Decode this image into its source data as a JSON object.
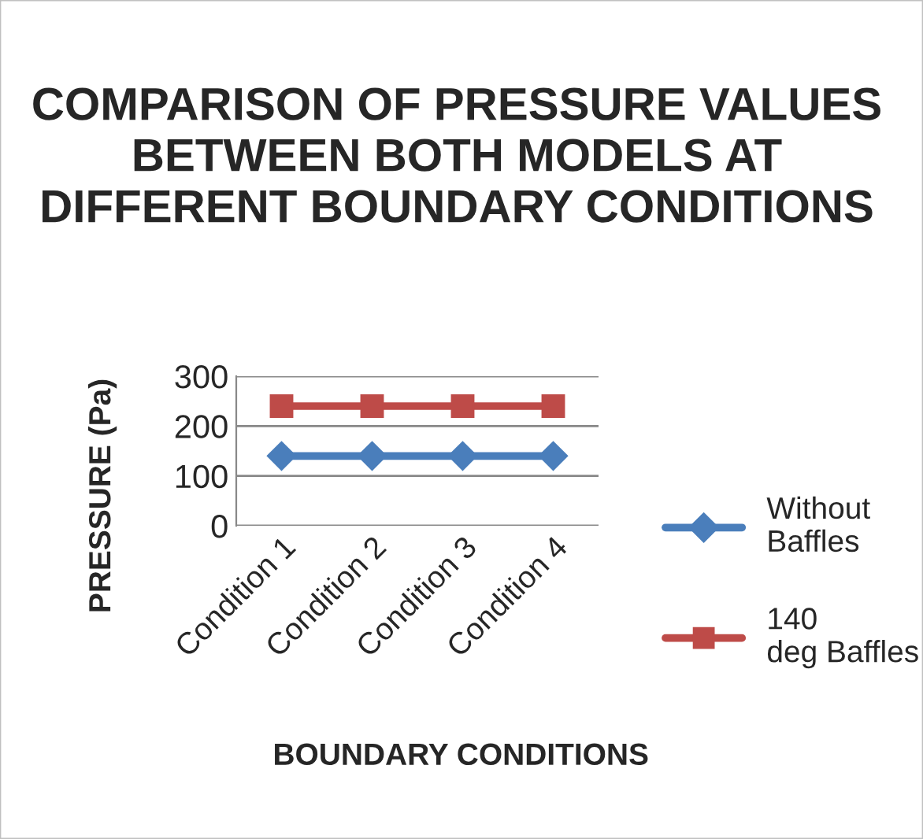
{
  "chart_data": {
    "type": "line",
    "title": "COMPARISON OF PRESSURE VALUES BETWEEN BOTH MODELS AT DIFFERENT BOUNDARY CONDITIONS",
    "xlabel": "BOUNDARY CONDITIONS",
    "ylabel": "PRESSURE (Pa)",
    "categories": [
      "Condition 1",
      "Condition 2",
      "Condition 3",
      "Condition 4"
    ],
    "series": [
      {
        "name": "Without Baffles",
        "color": "#4a7ebb",
        "marker": "diamond",
        "values": [
          140,
          140,
          140,
          140
        ]
      },
      {
        "name": "140 deg Baffles",
        "color": "#be4b48",
        "marker": "square",
        "values": [
          240,
          240,
          240,
          240
        ]
      }
    ],
    "ylim": [
      0,
      300
    ],
    "yticks": [
      0,
      100,
      200,
      300
    ],
    "grid": "y",
    "legend": "right"
  }
}
